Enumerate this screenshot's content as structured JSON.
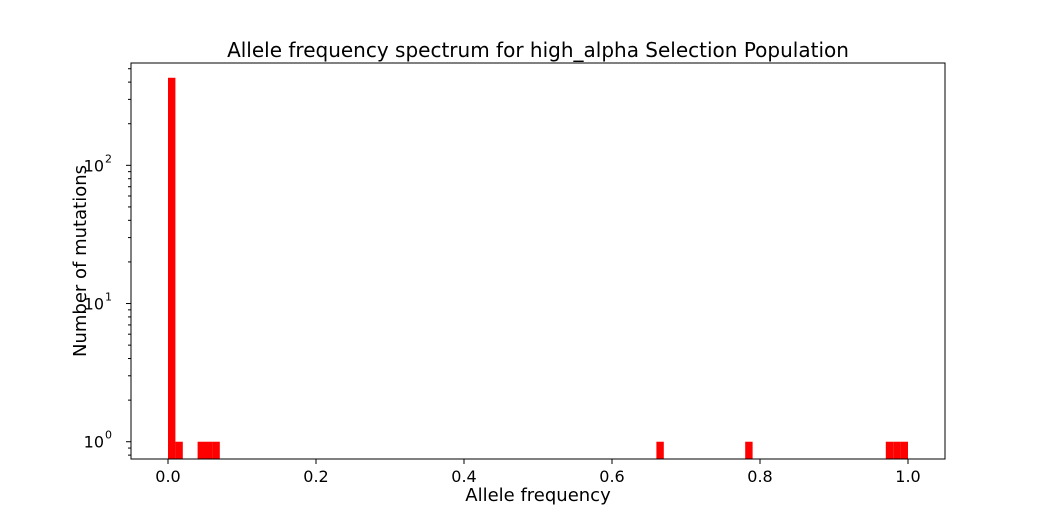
{
  "chart_data": {
    "type": "bar",
    "title": "Allele frequency spectrum for high_alpha Selection Population",
    "xlabel": "Allele frequency",
    "ylabel": "Number of mutations",
    "y_scale": "log",
    "xlim": [
      -0.05,
      1.05
    ],
    "ylim": [
      0.75,
      550
    ],
    "bar_color": "#ff0000",
    "bin_width": 0.01,
    "bars": [
      {
        "x": 0.0,
        "value": 430
      },
      {
        "x": 0.01,
        "value": 1
      },
      {
        "x": 0.04,
        "value": 1
      },
      {
        "x": 0.05,
        "value": 1
      },
      {
        "x": 0.06,
        "value": 1
      },
      {
        "x": 0.66,
        "value": 1
      },
      {
        "x": 0.78,
        "value": 1
      },
      {
        "x": 0.97,
        "value": 1
      },
      {
        "x": 0.98,
        "value": 1
      },
      {
        "x": 0.99,
        "value": 1
      }
    ],
    "x_ticks": [
      {
        "value": 0.0,
        "label": "0.0"
      },
      {
        "value": 0.2,
        "label": "0.2"
      },
      {
        "value": 0.4,
        "label": "0.4"
      },
      {
        "value": 0.6,
        "label": "0.6"
      },
      {
        "value": 0.8,
        "label": "0.8"
      },
      {
        "value": 1.0,
        "label": "1.0"
      }
    ],
    "y_ticks": [
      {
        "value": 1,
        "base": "10",
        "exp": "0"
      },
      {
        "value": 10,
        "base": "10",
        "exp": "1"
      },
      {
        "value": 100,
        "base": "10",
        "exp": "2"
      }
    ],
    "grid": false,
    "legend": "none"
  }
}
